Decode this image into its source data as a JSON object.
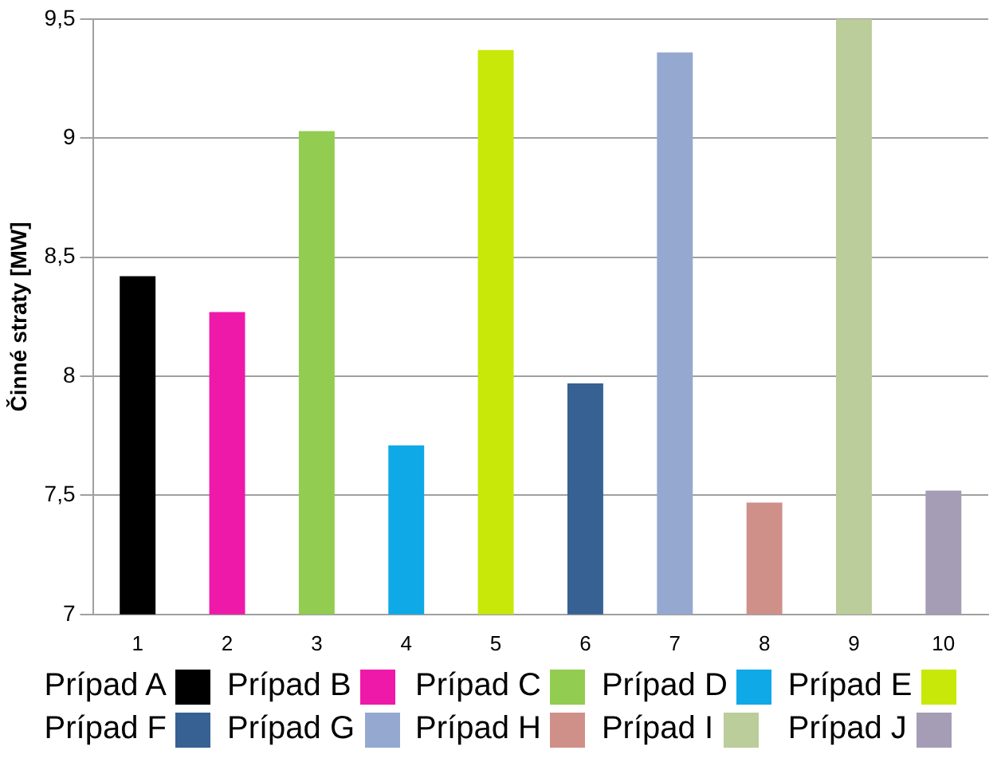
{
  "chart_data": {
    "type": "bar",
    "ylabel": "Činné straty [MW]",
    "categories": [
      "1",
      "2",
      "3",
      "4",
      "5",
      "6",
      "7",
      "8",
      "9",
      "10"
    ],
    "series": [
      {
        "name": "Prípad A",
        "color": "#000000",
        "values": [
          8.42,
          null,
          null,
          null,
          null,
          null,
          null,
          null,
          null,
          null
        ]
      },
      {
        "name": "Prípad B",
        "color": "#ee19a9",
        "values": [
          null,
          8.27,
          null,
          null,
          null,
          null,
          null,
          null,
          null,
          null
        ]
      },
      {
        "name": "Prípad C",
        "color": "#92cc50",
        "values": [
          null,
          null,
          9.03,
          null,
          null,
          null,
          null,
          null,
          null,
          null
        ]
      },
      {
        "name": "Prípad D",
        "color": "#0ea9e6",
        "values": [
          null,
          null,
          null,
          7.71,
          null,
          null,
          null,
          null,
          null,
          null
        ]
      },
      {
        "name": "Prípad E",
        "color": "#c8e80a",
        "values": [
          null,
          null,
          null,
          null,
          9.37,
          null,
          null,
          null,
          null,
          null
        ]
      },
      {
        "name": "Prípad F",
        "color": "#366192",
        "values": [
          null,
          null,
          null,
          null,
          null,
          7.97,
          null,
          null,
          null,
          null
        ]
      },
      {
        "name": "Prípad G",
        "color": "#95a8d0",
        "values": [
          null,
          null,
          null,
          null,
          null,
          null,
          9.36,
          null,
          null,
          null
        ]
      },
      {
        "name": "Prípad H",
        "color": "#d0908a",
        "values": [
          null,
          null,
          null,
          null,
          null,
          null,
          null,
          7.47,
          null,
          null
        ]
      },
      {
        "name": "Prípad I",
        "color": "#bacd9a",
        "values": [
          null,
          null,
          null,
          null,
          null,
          null,
          null,
          null,
          9.5,
          null
        ]
      },
      {
        "name": "Prípad J",
        "color": "#a59cb5",
        "values": [
          null,
          null,
          null,
          null,
          null,
          null,
          null,
          null,
          null,
          7.52
        ]
      }
    ],
    "ylim": [
      7,
      9.5
    ],
    "yticks": [
      {
        "value": 7,
        "label": "7"
      },
      {
        "value": 7.5,
        "label": "7,5"
      },
      {
        "value": 8,
        "label": "8"
      },
      {
        "value": 8.5,
        "label": "8,5"
      },
      {
        "value": 9,
        "label": "9"
      },
      {
        "value": 9.5,
        "label": "9,5"
      }
    ],
    "grid": "y",
    "legend": "bottom"
  }
}
